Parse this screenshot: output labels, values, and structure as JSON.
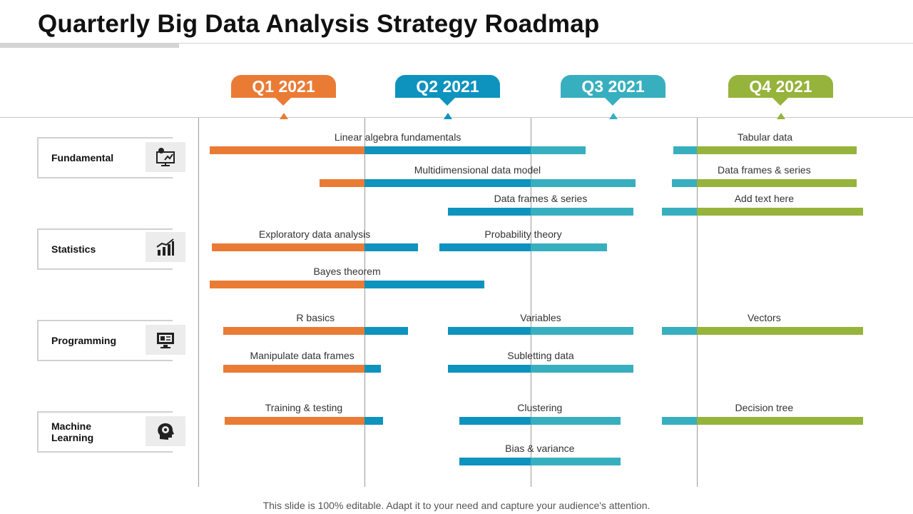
{
  "title": "Quarterly Big Data Analysis Strategy Roadmap",
  "footer": "This slide is 100% editable. Adapt it to your need and capture your audience's attention.",
  "colors": {
    "q1": "#ea7b35",
    "q2": "#0e93be",
    "q3": "#38afbf",
    "q4": "#96b33b"
  },
  "quarters": [
    {
      "label": "Q1 2021",
      "color": "#ea7b35"
    },
    {
      "label": "Q2 2021",
      "color": "#0e93be"
    },
    {
      "label": "Q3 2021",
      "color": "#38afbf"
    },
    {
      "label": "Q4 2021",
      "color": "#96b33b"
    }
  ],
  "categories": [
    {
      "label": "Fundamental",
      "icon": "analytics-monitor-icon"
    },
    {
      "label": "Statistics",
      "icon": "growth-chart-icon"
    },
    {
      "label": "Programming",
      "icon": "computer-screen-icon"
    },
    {
      "label": "Machine Learning",
      "icon": "brain-gear-icon"
    }
  ],
  "tasks": [
    {
      "label": "Linear algebra fundamentals",
      "start": 0.07,
      "end": 2.33
    },
    {
      "label": "Multidimensional data model",
      "start": 0.73,
      "end": 2.63
    },
    {
      "label": "Data frames & series",
      "start": 1.5,
      "end": 2.62
    },
    {
      "label": "Tabular data",
      "start": 2.86,
      "end": 3.96
    },
    {
      "label": "Data frames & series",
      "start": 2.85,
      "end": 3.96
    },
    {
      "label": "Add text here",
      "start": 2.79,
      "end": 4.02
    },
    {
      "label": "Exploratory data analysis",
      "start": 0.08,
      "end": 1.32
    },
    {
      "label": "Probability theory",
      "start": 1.45,
      "end": 2.46
    },
    {
      "label": "Bayes theorem",
      "start": 0.07,
      "end": 1.72
    },
    {
      "label": "R basics",
      "start": 0.15,
      "end": 1.26
    },
    {
      "label": "Variables",
      "start": 1.5,
      "end": 2.62
    },
    {
      "label": "Vectors",
      "start": 2.79,
      "end": 4.02
    },
    {
      "label": "Manipulate data frames",
      "start": 0.15,
      "end": 1.1
    },
    {
      "label": "Subletting data",
      "start": 1.5,
      "end": 2.62
    },
    {
      "label": "Training & testing",
      "start": 0.16,
      "end": 1.11
    },
    {
      "label": "Clustering",
      "start": 1.57,
      "end": 2.54
    },
    {
      "label": "Decision tree",
      "start": 2.79,
      "end": 4.02
    },
    {
      "label": "Bias & variance",
      "start": 1.57,
      "end": 2.54
    }
  ]
}
